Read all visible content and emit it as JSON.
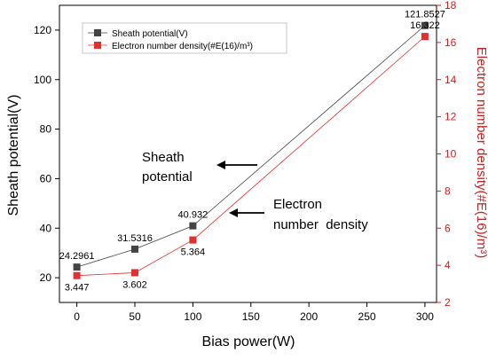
{
  "chart_data": {
    "type": "line",
    "x": [
      0,
      50,
      100,
      300
    ],
    "xlabel": "Bias power(W)",
    "ylabel": "Sheath potential(V)",
    "y2label": "Electron number density(#E(16)/m³)",
    "xlim": [
      -15,
      310
    ],
    "ylim": [
      10,
      130
    ],
    "y2lim": [
      2,
      18
    ],
    "xticks": [
      0,
      50,
      100,
      150,
      200,
      250,
      300
    ],
    "yticks": [
      20,
      40,
      60,
      80,
      100,
      120
    ],
    "y2ticks": [
      2,
      4,
      6,
      8,
      10,
      12,
      14,
      16,
      18
    ],
    "series": [
      {
        "name": "Sheath potential(V)",
        "axis": "left",
        "color": "#444444",
        "marker": "square",
        "values": [
          24.2961,
          31.5316,
          40.932,
          121.8527
        ],
        "labels": [
          "24.2961",
          "31.5316",
          "40.932",
          "121.8527"
        ]
      },
      {
        "name": "Electron number density(#E(16)/m³)",
        "axis": "right",
        "color": "#e03030",
        "marker": "square",
        "values": [
          3.447,
          3.602,
          5.364,
          16.322
        ],
        "labels": [
          "3.447",
          "3.602",
          "5.364",
          "16.322"
        ]
      }
    ],
    "legend": "top-left",
    "annotations": [
      {
        "text": [
          "Sheath",
          "potential"
        ],
        "arrow": "left"
      },
      {
        "text": [
          "Electron",
          "number  density"
        ],
        "arrow": "left"
      }
    ]
  },
  "colors": {
    "axis": "#000000",
    "right_axis": "#cc2020"
  }
}
